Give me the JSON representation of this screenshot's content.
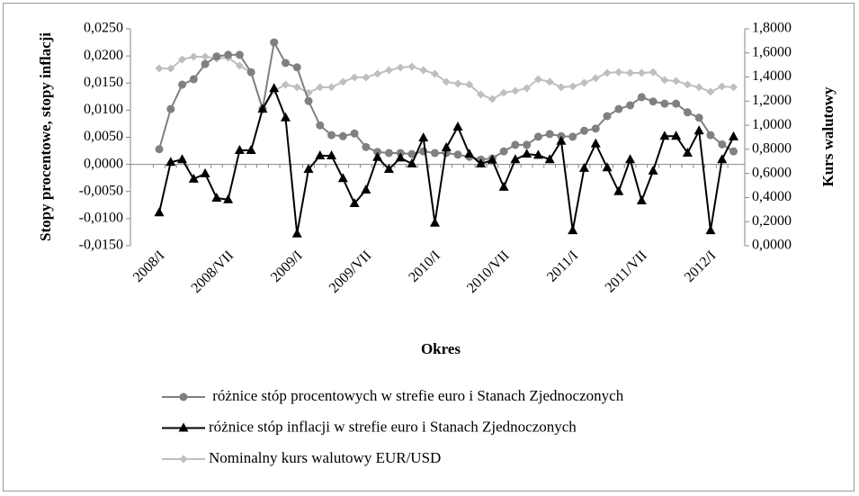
{
  "chart_data": {
    "type": "line",
    "x_label": "Okres",
    "y_label": "Stopy procentowe, stopy inflacji",
    "y2_label": "Kurs walutowy",
    "categories": [
      "2008/I",
      null,
      null,
      null,
      null,
      null,
      "2008/VII",
      null,
      null,
      null,
      null,
      null,
      "2009/I",
      null,
      null,
      null,
      null,
      null,
      "2009/VII",
      null,
      null,
      null,
      null,
      null,
      "2010/I",
      null,
      null,
      null,
      null,
      null,
      "2010/VII",
      null,
      null,
      null,
      null,
      null,
      "2011/I",
      null,
      null,
      null,
      null,
      null,
      "2011/VII",
      null,
      null,
      null,
      null,
      null,
      "2012/I",
      null,
      null
    ],
    "ylim": [
      -0.015,
      0.025
    ],
    "yticks": [
      {
        "value": -0.015,
        "label": "-0,0150"
      },
      {
        "value": -0.01,
        "label": "-0,0100"
      },
      {
        "value": -0.005,
        "label": "-0,0050"
      },
      {
        "value": 0,
        "label": "0,0000"
      },
      {
        "value": 0.005,
        "label": "0,0050"
      },
      {
        "value": 0.01,
        "label": "0,0100"
      },
      {
        "value": 0.015,
        "label": "0,0150"
      },
      {
        "value": 0.02,
        "label": "0,0200"
      },
      {
        "value": 0.025,
        "label": "0,0250"
      }
    ],
    "y2lim": [
      0,
      1.8
    ],
    "y2ticks": [
      {
        "value": 0,
        "label": "0,0000"
      },
      {
        "value": 0.2,
        "label": "0,2000"
      },
      {
        "value": 0.4,
        "label": "0,4000"
      },
      {
        "value": 0.6,
        "label": "0,6000"
      },
      {
        "value": 0.8,
        "label": "0,8000"
      },
      {
        "value": 1,
        "label": "1,0000"
      },
      {
        "value": 1.2,
        "label": "1,2000"
      },
      {
        "value": 1.4,
        "label": "1,4000"
      },
      {
        "value": 1.6,
        "label": "1,6000"
      },
      {
        "value": 1.8,
        "label": "1,8000"
      }
    ],
    "grid": false,
    "series": [
      {
        "name": " różnice stóp procentowych w strefie euro i Stanach Zjednoczonych",
        "color": "#808080",
        "marker": "circle",
        "values": [
          0.0028,
          0.0102,
          0.0147,
          0.0157,
          0.0185,
          0.0199,
          0.0202,
          0.0202,
          0.017,
          0.0102,
          0.0225,
          0.0187,
          0.0179,
          0.0117,
          0.0072,
          0.0054,
          0.0052,
          0.0057,
          0.0032,
          0.0023,
          0.0021,
          0.0021,
          0.0019,
          0.0024,
          0.0021,
          0.0021,
          0.0018,
          0.0014,
          0.0009,
          0.0011,
          0.0024,
          0.0036,
          0.0036,
          0.0051,
          0.0056,
          0.0052,
          0.0051,
          0.0062,
          0.0066,
          0.0089,
          0.0102,
          0.0109,
          0.0124,
          0.0116,
          0.0112,
          0.0112,
          0.0096,
          0.0086,
          0.0054,
          0.0037,
          0.0024
        ]
      },
      {
        "name": "różnice stóp inflacji w strefie euro i Stanach Zjednoczonych",
        "color": "#000000",
        "marker": "triangle",
        "values": [
          -0.0089,
          0.0004,
          0.0009,
          -0.0027,
          -0.0017,
          -0.0062,
          -0.0065,
          0.0026,
          0.0026,
          0.0102,
          0.014,
          0.0086,
          -0.0128,
          -0.0009,
          0.0016,
          0.0016,
          -0.0026,
          -0.0072,
          -0.0047,
          0.0013,
          -0.0009,
          0.0012,
          0.0001,
          0.0049,
          -0.0108,
          0.0031,
          0.0069,
          0.0019,
          0.0001,
          0.0008,
          -0.0042,
          0.0009,
          0.0019,
          0.0017,
          0.0009,
          0.0043,
          -0.0122,
          -0.0007,
          0.0038,
          -0.0006,
          -0.005,
          0.0009,
          -0.0067,
          -0.0012,
          0.0052,
          0.0052,
          0.0021,
          0.0062,
          -0.0122,
          0.0009,
          0.0051
        ]
      },
      {
        "name": "Nominalny kurs walutowy EUR/USD",
        "color": "#bfbfbf",
        "marker": "diamond",
        "axis": "y2",
        "values": [
          1.471,
          1.47,
          1.546,
          1.568,
          1.568,
          1.553,
          1.56,
          1.494,
          1.44,
          1.135,
          1.285,
          1.337,
          1.315,
          1.27,
          1.315,
          1.315,
          1.36,
          1.397,
          1.397,
          1.427,
          1.456,
          1.479,
          1.486,
          1.456,
          1.427,
          1.36,
          1.345,
          1.337,
          1.255,
          1.217,
          1.27,
          1.285,
          1.307,
          1.382,
          1.36,
          1.315,
          1.322,
          1.352,
          1.39,
          1.434,
          1.441,
          1.434,
          1.434,
          1.441,
          1.374,
          1.367,
          1.337,
          1.315,
          1.277,
          1.322,
          1.315
        ]
      }
    ]
  }
}
